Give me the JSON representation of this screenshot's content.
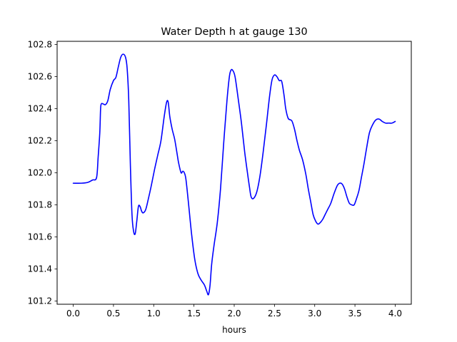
{
  "chart_data": {
    "type": "line",
    "title": "Water Depth h at gauge 130",
    "xlabel": "hours",
    "ylabel": "",
    "xlim": [
      -0.2,
      4.2
    ],
    "ylim": [
      101.18,
      102.82
    ],
    "xticks": [
      0.0,
      0.5,
      1.0,
      1.5,
      2.0,
      2.5,
      3.0,
      3.5,
      4.0
    ],
    "xtick_labels": [
      "0.0",
      "0.5",
      "1.0",
      "1.5",
      "2.0",
      "2.5",
      "3.0",
      "3.5",
      "4.0"
    ],
    "yticks": [
      101.2,
      101.4,
      101.6,
      101.8,
      102.0,
      102.2,
      102.4,
      102.6,
      102.8
    ],
    "ytick_labels": [
      "101.2",
      "101.4",
      "101.6",
      "101.8",
      "102.0",
      "102.2",
      "102.4",
      "102.6",
      "102.8"
    ],
    "grid": false,
    "series": [
      {
        "color": "#0000ff",
        "x": [
          0.0,
          0.1,
          0.18,
          0.24,
          0.29,
          0.31,
          0.33,
          0.34,
          0.35,
          0.37,
          0.4,
          0.43,
          0.46,
          0.5,
          0.53,
          0.56,
          0.59,
          0.62,
          0.65,
          0.67,
          0.69,
          0.71,
          0.73,
          0.75,
          0.77,
          0.79,
          0.81,
          0.83,
          0.85,
          0.87,
          0.9,
          0.93,
          0.97,
          1.01,
          1.05,
          1.09,
          1.13,
          1.16,
          1.18,
          1.2,
          1.23,
          1.26,
          1.29,
          1.31,
          1.34,
          1.36,
          1.38,
          1.4,
          1.43,
          1.47,
          1.51,
          1.55,
          1.59,
          1.63,
          1.66,
          1.68,
          1.7,
          1.72,
          1.75,
          1.79,
          1.83,
          1.87,
          1.91,
          1.94,
          1.96,
          1.98,
          2.01,
          2.05,
          2.09,
          2.13,
          2.17,
          2.19,
          2.21,
          2.24,
          2.28,
          2.32,
          2.36,
          2.4,
          2.44,
          2.47,
          2.5,
          2.53,
          2.56,
          2.59,
          2.62,
          2.64,
          2.67,
          2.7,
          2.72,
          2.75,
          2.78,
          2.81,
          2.85,
          2.89,
          2.92,
          2.95,
          2.98,
          3.01,
          3.04,
          3.07,
          3.1,
          3.13,
          3.16,
          3.2,
          3.24,
          3.28,
          3.31,
          3.34,
          3.37,
          3.4,
          3.43,
          3.46,
          3.49,
          3.52,
          3.55,
          3.58,
          3.61,
          3.64,
          3.68,
          3.72,
          3.76,
          3.8,
          3.84,
          3.88,
          3.92,
          3.96,
          4.0
        ],
        "y": [
          101.935,
          101.935,
          101.94,
          101.955,
          101.97,
          102.1,
          102.25,
          102.4,
          102.43,
          102.43,
          102.425,
          102.45,
          102.52,
          102.575,
          102.595,
          102.66,
          102.72,
          102.74,
          102.72,
          102.65,
          102.45,
          102.05,
          101.74,
          101.635,
          101.62,
          101.7,
          101.79,
          101.79,
          101.76,
          101.75,
          101.77,
          101.83,
          101.92,
          102.02,
          102.11,
          102.2,
          102.35,
          102.44,
          102.44,
          102.35,
          102.27,
          102.21,
          102.12,
          102.06,
          102.0,
          102.01,
          102.0,
          101.96,
          101.82,
          101.62,
          101.46,
          101.37,
          101.33,
          101.3,
          101.26,
          101.24,
          101.3,
          101.43,
          101.55,
          101.69,
          101.9,
          102.19,
          102.45,
          102.6,
          102.64,
          102.64,
          102.6,
          102.46,
          102.31,
          102.13,
          101.98,
          101.91,
          101.85,
          101.84,
          101.88,
          101.98,
          102.13,
          102.3,
          102.48,
          102.58,
          102.61,
          102.6,
          102.575,
          102.57,
          102.48,
          102.4,
          102.34,
          102.33,
          102.32,
          102.27,
          102.2,
          102.14,
          102.08,
          101.99,
          101.9,
          101.82,
          101.74,
          101.7,
          101.68,
          101.69,
          101.71,
          101.74,
          101.77,
          101.81,
          101.87,
          101.92,
          101.935,
          101.93,
          101.9,
          101.85,
          101.81,
          101.8,
          101.8,
          101.84,
          101.89,
          101.97,
          102.05,
          102.14,
          102.25,
          102.3,
          102.33,
          102.335,
          102.32,
          102.31,
          102.31,
          102.31,
          102.32
        ]
      }
    ]
  }
}
